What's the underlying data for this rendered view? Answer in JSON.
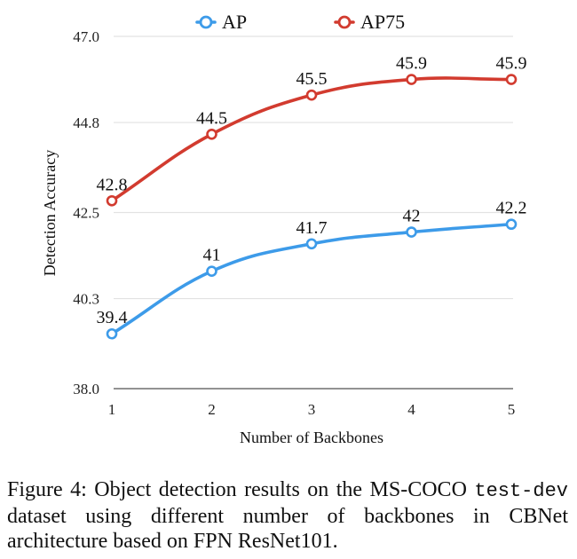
{
  "chart_data": {
    "type": "line",
    "title": "",
    "xlabel": "Number of Backbones",
    "ylabel": "Detection Accuracy",
    "x": [
      1,
      2,
      3,
      4,
      5
    ],
    "x_tick_labels": [
      "1",
      "2",
      "3",
      "4",
      "5"
    ],
    "ylim": [
      38.0,
      47.0
    ],
    "y_tick_values": [
      38.0,
      40.3,
      42.5,
      44.8,
      47.0
    ],
    "y_tick_labels": [
      "38.0",
      "40.3",
      "42.5",
      "44.8",
      "47.0"
    ],
    "grid": "horizontal",
    "legend_position": "top",
    "series": [
      {
        "name": "AP",
        "color": "#3d9be9",
        "values": [
          39.4,
          41.0,
          41.7,
          42.0,
          42.2
        ],
        "labels": [
          "39.4",
          "41",
          "41.7",
          "42",
          "42.2"
        ]
      },
      {
        "name": "AP75",
        "color": "#d23b2f",
        "values": [
          42.8,
          44.5,
          45.5,
          45.9,
          45.9
        ],
        "labels": [
          "42.8",
          "44.5",
          "45.5",
          "45.9",
          "45.9"
        ]
      }
    ]
  },
  "caption": {
    "prefix": "Figure 4: Object detection results on the MS-COCO ",
    "code": "test-dev",
    "suffix": " dataset using different number of backbones in CBNet architecture based on FPN ResNet101."
  }
}
